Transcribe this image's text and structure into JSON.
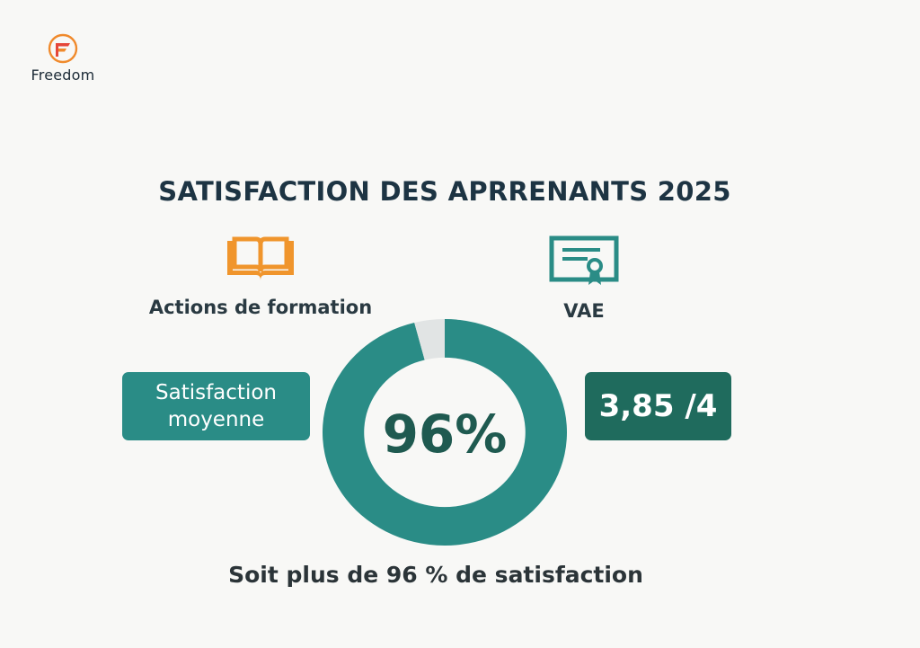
{
  "brand": {
    "name": "Freedom",
    "logo_icon": "freedom-f-logo",
    "colors": {
      "orange": "#f08a2c",
      "red": "#e5473a"
    }
  },
  "title": "SATISFACTION DES APRRENANTS 2025",
  "categories": [
    {
      "label": "Actions de formation",
      "icon": "open-book-icon",
      "color": "#f0952c"
    },
    {
      "label": "VAE",
      "icon": "certificate-icon",
      "color": "#2a8c86"
    }
  ],
  "left_badge": {
    "text": "Satisfaction moyenne",
    "color": "#2a8c86"
  },
  "right_badge": {
    "text": "3,85 /4",
    "color": "#1f6b5d"
  },
  "footer_text": "Soit plus de 96 % de satisfaction",
  "chart_data": {
    "type": "pie",
    "title": "SATISFACTION DES APRRENANTS 2025",
    "center_label": "96%",
    "slices": [
      {
        "value": 96,
        "color": "#2a8c86"
      },
      {
        "value": 4,
        "color": "#e1e4e4"
      }
    ]
  }
}
